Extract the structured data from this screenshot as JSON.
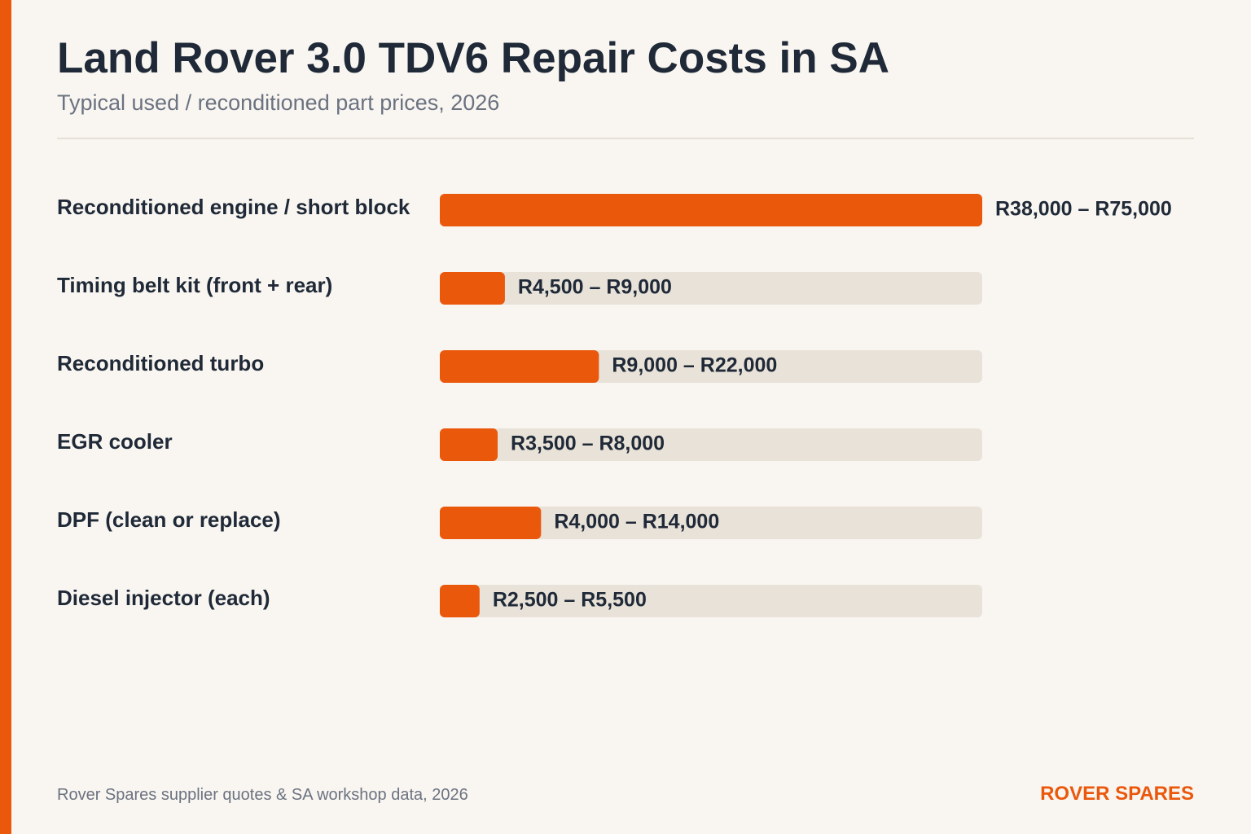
{
  "header": {
    "title": "Land Rover 3.0 TDV6 Repair Costs in SA",
    "subtitle": "Typical used / reconditioned part prices, 2026"
  },
  "chart_data": {
    "type": "bar",
    "orientation": "horizontal",
    "categories": [
      "Reconditioned engine / short block",
      "Timing belt kit (front + rear)",
      "Reconditioned turbo",
      "EGR cooler",
      "DPF (clean or replace)",
      "Diesel injector (each)"
    ],
    "value_labels": [
      "R38,000 – R75,000",
      "R4,500 – R9,000",
      "R9,000 – R22,000",
      "R3,500 – R8,000",
      "R4,000 – R14,000",
      "R2,500 – R5,500"
    ],
    "values": [
      75000,
      9000,
      22000,
      8000,
      14000,
      5500
    ],
    "xlim": [
      0,
      75000
    ],
    "grid": false,
    "legend": "none",
    "colors": {
      "bar": "#ea580c",
      "track": "#e8e2d8",
      "label": "#1f2937"
    }
  },
  "footer": {
    "source": "Rover Spares supplier quotes & SA workshop data, 2026",
    "brand": "ROVER SPARES"
  }
}
